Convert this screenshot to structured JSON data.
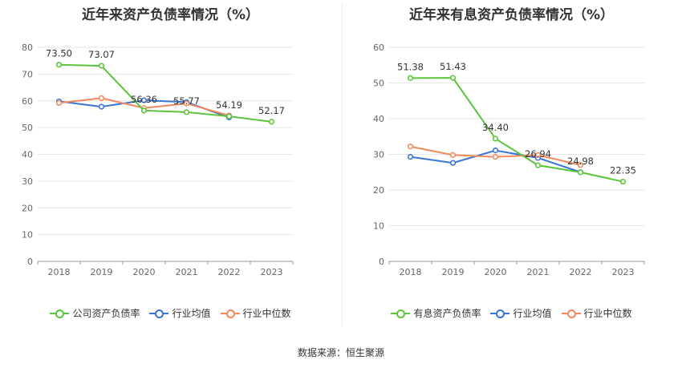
{
  "chart_data": [
    {
      "type": "line",
      "title": "近年来资产负债率情况（%）",
      "categories": [
        "2018",
        "2019",
        "2020",
        "2021",
        "2022",
        "2023"
      ],
      "ylim": [
        0,
        80
      ],
      "yticks": [
        0,
        10,
        20,
        30,
        40,
        50,
        60,
        70,
        80
      ],
      "grid": true,
      "legend_position": "bottom",
      "series": [
        {
          "name": "公司资产负债率",
          "color": "#5ac43a",
          "values": [
            73.5,
            73.07,
            56.36,
            55.77,
            54.19,
            52.17
          ],
          "labels": [
            "73.50",
            "73.07",
            "56.36",
            "55.77",
            "54.19",
            "52.17"
          ]
        },
        {
          "name": "行业均值",
          "color": "#3a74d6",
          "values": [
            59.8,
            57.8,
            60.2,
            59.5,
            53.8,
            null
          ]
        },
        {
          "name": "行业中位数",
          "color": "#f08a5d",
          "values": [
            59.2,
            61.0,
            57.3,
            59.0,
            54.5,
            null
          ]
        }
      ]
    },
    {
      "type": "line",
      "title": "近年来有息资产负债率情况（%）",
      "categories": [
        "2018",
        "2019",
        "2020",
        "2021",
        "2022",
        "2023"
      ],
      "ylim": [
        0,
        60
      ],
      "yticks": [
        0,
        10,
        20,
        30,
        40,
        50,
        60
      ],
      "grid": true,
      "legend_position": "bottom",
      "series": [
        {
          "name": "有息资产负债率",
          "color": "#5ac43a",
          "values": [
            51.38,
            51.43,
            34.4,
            26.94,
            24.98,
            22.35
          ],
          "labels": [
            "51.38",
            "51.43",
            "34.40",
            "26.94",
            "24.98",
            "22.35"
          ]
        },
        {
          "name": "行业均值",
          "color": "#3a74d6",
          "values": [
            29.3,
            27.6,
            31.1,
            29.0,
            25.0,
            null
          ]
        },
        {
          "name": "行业中位数",
          "color": "#f08a5d",
          "values": [
            32.2,
            29.8,
            29.3,
            29.8,
            27.0,
            null
          ]
        }
      ]
    }
  ],
  "source": "数据来源：恒生聚源"
}
